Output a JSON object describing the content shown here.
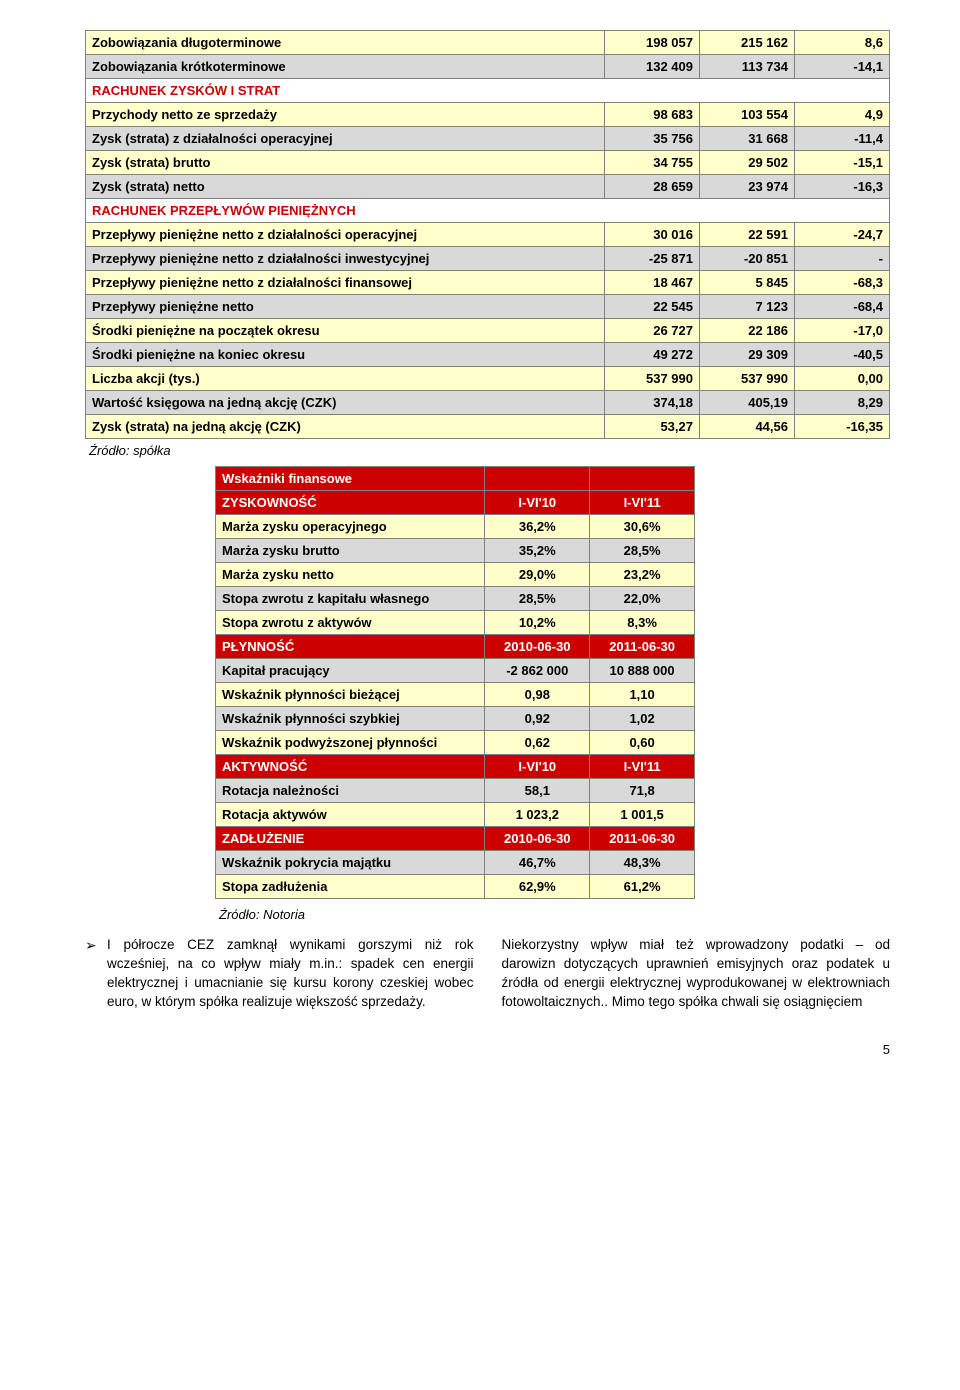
{
  "table1": {
    "colors": {
      "yellow": "#ffffcc",
      "gray": "#d9d9d9",
      "red": "#cc0000",
      "border": "#808080"
    },
    "rows": [
      {
        "style": "yellow",
        "label": "Zobowiązania długoterminowe",
        "c1": "198 057",
        "c2": "215 162",
        "c3": "8,6"
      },
      {
        "style": "gray",
        "label": "Zobowiązania krótkoterminowe",
        "c1": "132 409",
        "c2": "113 734",
        "c3": "-14,1"
      },
      {
        "style": "section",
        "label": "RACHUNEK ZYSKÓW I STRAT"
      },
      {
        "style": "yellow",
        "label": "Przychody netto ze sprzedaży",
        "c1": "98 683",
        "c2": "103 554",
        "c3": "4,9"
      },
      {
        "style": "gray",
        "label": "Zysk (strata) z działalności operacyjnej",
        "c1": "35 756",
        "c2": "31 668",
        "c3": "-11,4"
      },
      {
        "style": "yellow",
        "label": "Zysk (strata) brutto",
        "c1": "34 755",
        "c2": "29 502",
        "c3": "-15,1"
      },
      {
        "style": "gray",
        "label": "Zysk (strata) netto",
        "c1": "28 659",
        "c2": "23 974",
        "c3": "-16,3"
      },
      {
        "style": "section",
        "label": "RACHUNEK PRZEPŁYWÓW PIENIĘŻNYCH"
      },
      {
        "style": "yellow",
        "label": "Przepływy pieniężne netto z działalności operacyjnej",
        "c1": "30 016",
        "c2": "22 591",
        "c3": "-24,7"
      },
      {
        "style": "gray",
        "label": "Przepływy pieniężne netto z działalności inwestycyjnej",
        "c1": "-25 871",
        "c2": "-20 851",
        "c3": "-"
      },
      {
        "style": "yellow",
        "label": "Przepływy pieniężne netto z działalności finansowej",
        "c1": "18 467",
        "c2": "5 845",
        "c3": "-68,3"
      },
      {
        "style": "gray",
        "label": "Przepływy pieniężne netto",
        "c1": "22 545",
        "c2": "7 123",
        "c3": "-68,4"
      },
      {
        "style": "yellow",
        "label": "Środki pieniężne na początek okresu",
        "c1": "26 727",
        "c2": "22 186",
        "c3": "-17,0"
      },
      {
        "style": "gray",
        "label": "Środki pieniężne na koniec okresu",
        "c1": "49 272",
        "c2": "29 309",
        "c3": "-40,5"
      },
      {
        "style": "yellow",
        "label": "Liczba akcji (tys.)",
        "c1": "537 990",
        "c2": "537 990",
        "c3": "0,00"
      },
      {
        "style": "gray",
        "label": "Wartość księgowa na jedną akcję (CZK)",
        "c1": "374,18",
        "c2": "405,19",
        "c3": "8,29"
      },
      {
        "style": "yellow",
        "label": "Zysk (strata) na jedną akcję (CZK)",
        "c1": "53,27",
        "c2": "44,56",
        "c3": "-16,35"
      }
    ]
  },
  "source1": "Źródło: spółka",
  "table2": {
    "rows": [
      {
        "style": "red",
        "label": "Wskaźniki finansowe",
        "c1": "",
        "c2": ""
      },
      {
        "style": "red",
        "label": "ZYSKOWNOŚĆ",
        "c1": "I-VI'10",
        "c2": "I-VI'11"
      },
      {
        "style": "yellow",
        "label": "Marża zysku operacyjnego",
        "c1": "36,2%",
        "c2": "30,6%"
      },
      {
        "style": "gray",
        "label": "Marża zysku brutto",
        "c1": "35,2%",
        "c2": "28,5%"
      },
      {
        "style": "yellow",
        "label": "Marża zysku netto",
        "c1": "29,0%",
        "c2": "23,2%"
      },
      {
        "style": "gray",
        "label": "Stopa zwrotu z kapitału własnego",
        "c1": "28,5%",
        "c2": "22,0%"
      },
      {
        "style": "yellow",
        "label": "Stopa zwrotu z aktywów",
        "c1": "10,2%",
        "c2": "8,3%"
      },
      {
        "style": "red",
        "label": "PŁYNNOŚĆ",
        "c1": "2010-06-30",
        "c2": "2011-06-30"
      },
      {
        "style": "gray",
        "label": "Kapitał pracujący",
        "c1": "-2 862 000",
        "c2": "10 888 000"
      },
      {
        "style": "yellow",
        "label": "Wskaźnik płynności bieżącej",
        "c1": "0,98",
        "c2": "1,10"
      },
      {
        "style": "gray",
        "label": "Wskaźnik płynności szybkiej",
        "c1": "0,92",
        "c2": "1,02"
      },
      {
        "style": "yellow",
        "label": "Wskaźnik podwyższonej płynności",
        "c1": "0,62",
        "c2": "0,60"
      },
      {
        "style": "red",
        "label": "AKTYWNOŚĆ",
        "c1": "I-VI'10",
        "c2": "I-VI'11"
      },
      {
        "style": "gray",
        "label": "Rotacja należności",
        "c1": "58,1",
        "c2": "71,8"
      },
      {
        "style": "yellow",
        "label": "Rotacja aktywów",
        "c1": "1 023,2",
        "c2": "1 001,5"
      },
      {
        "style": "red",
        "label": "ZADŁUŻENIE",
        "c1": "2010-06-30",
        "c2": "2011-06-30"
      },
      {
        "style": "gray",
        "label": "Wskaźnik pokrycia majątku",
        "c1": "46,7%",
        "c2": "48,3%"
      },
      {
        "style": "yellow",
        "label": "Stopa zadłużenia",
        "c1": "62,9%",
        "c2": "61,2%"
      }
    ]
  },
  "source2": "Źródło: Notoria",
  "body": {
    "left": "I półrocze CEZ zamknął wynikami gorszymi niż rok wcześniej, na co wpływ miały m.in.: spadek cen energii elektrycznej i umacnianie się kursu korony czeskiej wobec euro, w którym spółka realizuje większość sprzedaży.",
    "right": "Niekorzystny wpływ miał też wprowadzony podatki – od darowizn dotyczących uprawnień emisyjnych oraz podatek u źródła od energii elektrycznej wyprodukowanej w elektrowniach fotowoltaicznych.. Mimo tego spółka chwali się osiągnięciem"
  },
  "pageNumber": "5"
}
